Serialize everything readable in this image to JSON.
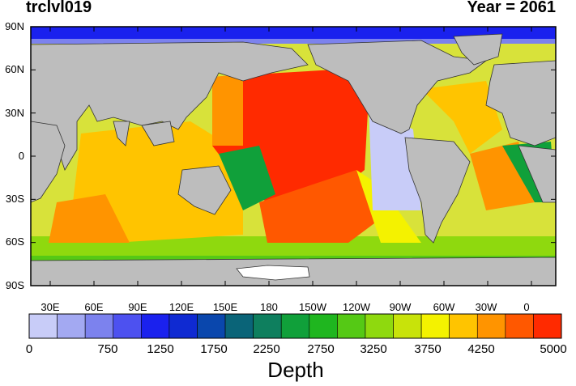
{
  "header": {
    "title_left": "trclvl019",
    "title_right": "Year = 2061"
  },
  "chart_data": {
    "type": "heatmap",
    "description_free": true,
    "y_ticks": [
      "90N",
      "60N",
      "30N",
      "0",
      "30S",
      "60S",
      "90S"
    ],
    "x_ticks": [
      "30E",
      "60E",
      "90E",
      "120E",
      "150E",
      "180",
      "150W",
      "120W",
      "90W",
      "60W",
      "30W",
      "0"
    ],
    "colorbar": {
      "title": "Depth",
      "ticks": [
        "0",
        "750",
        "1250",
        "1750",
        "2250",
        "2750",
        "3250",
        "3750",
        "4250",
        "5000"
      ],
      "colors": [
        "#c8ccf8",
        "#a3a9f2",
        "#7c82ee",
        "#4d51f0",
        "#1a21ee",
        "#0f2ad2",
        "#0a47ad",
        "#0a6478",
        "#0e7f5e",
        "#10a03a",
        "#1fb61f",
        "#55c915",
        "#8fd90e",
        "#c8e30a",
        "#f4f200",
        "#ffc400",
        "#ff9400",
        "#ff5800",
        "#ff2a00"
      ]
    },
    "colors": {
      "land": "#bdbdbd",
      "ice": "#ffffff",
      "coast": "#333333"
    }
  }
}
